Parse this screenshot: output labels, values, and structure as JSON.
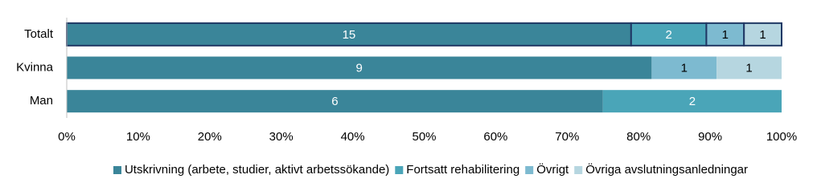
{
  "chart_data": {
    "type": "stacked_percent_barh",
    "categories": [
      "Totalt",
      "Kvinna",
      "Man"
    ],
    "series": [
      {
        "name": "Utskrivning (arbete, studier, aktivt arbetssökande)",
        "color": "#3a8599",
        "label_color": "#ffffff",
        "values": [
          15,
          9,
          6
        ]
      },
      {
        "name": "Fortsatt rehabilitering",
        "color": "#4aa5b8",
        "label_color": "#ffffff",
        "values": [
          2,
          null,
          2
        ]
      },
      {
        "name": "Övrigt",
        "color": "#7dbad0",
        "label_color": "#000000",
        "values": [
          1,
          1,
          null
        ]
      },
      {
        "name": "Övriga avslutningsanledningar",
        "color": "#b6d6e0",
        "label_color": "#000000",
        "values": [
          1,
          1,
          null
        ]
      }
    ],
    "xlim": [
      0,
      100
    ],
    "xticks": [
      {
        "value": 0,
        "label": "0%"
      },
      {
        "value": 10,
        "label": "10%"
      },
      {
        "value": 20,
        "label": "20%"
      },
      {
        "value": 30,
        "label": "30%"
      },
      {
        "value": 40,
        "label": "40%"
      },
      {
        "value": 50,
        "label": "50%"
      },
      {
        "value": 60,
        "label": "60%"
      },
      {
        "value": 70,
        "label": "70%"
      },
      {
        "value": 80,
        "label": "80%"
      },
      {
        "value": 90,
        "label": "90%"
      },
      {
        "value": 100,
        "label": "100%"
      }
    ],
    "outlined": [
      true,
      false,
      false
    ],
    "outline_color": "#1f3864",
    "legend": "bottom"
  }
}
